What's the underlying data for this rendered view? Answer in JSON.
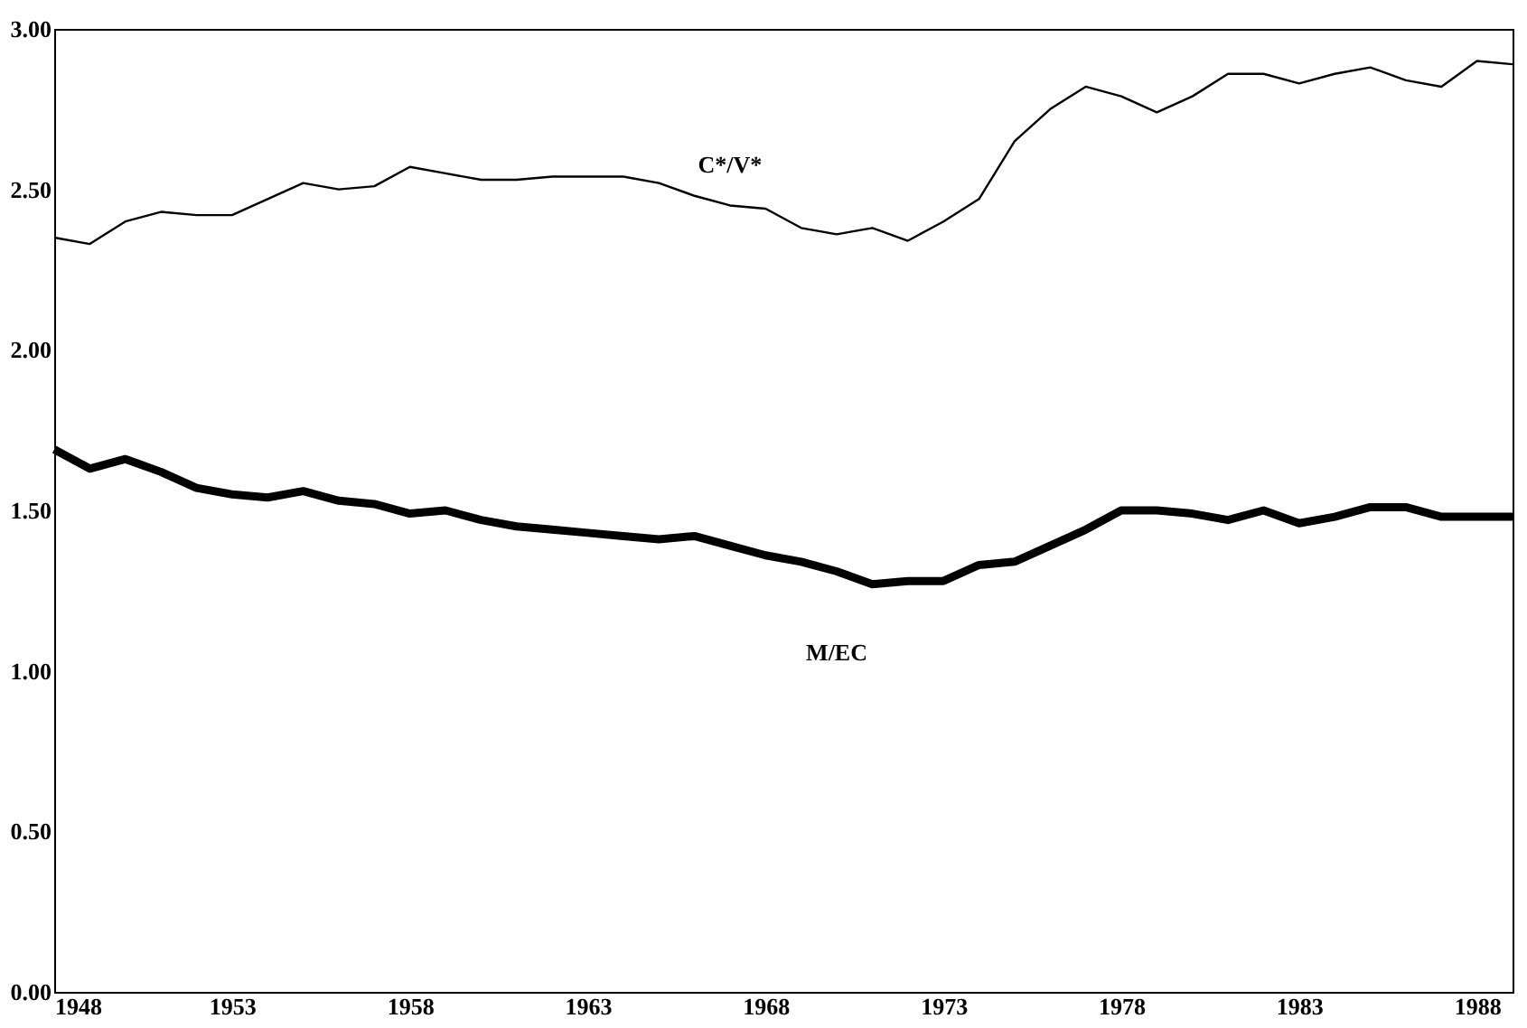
{
  "chart_data": {
    "type": "line",
    "x": [
      1948,
      1949,
      1950,
      1951,
      1952,
      1953,
      1954,
      1955,
      1956,
      1957,
      1958,
      1959,
      1960,
      1961,
      1962,
      1963,
      1964,
      1965,
      1966,
      1967,
      1968,
      1969,
      1970,
      1971,
      1972,
      1973,
      1974,
      1975,
      1976,
      1977,
      1978,
      1979,
      1980,
      1981,
      1982,
      1983,
      1984,
      1985,
      1986,
      1987,
      1988,
      1989
    ],
    "series": [
      {
        "name": "C*/V*",
        "color": "#000000",
        "values": [
          2.35,
          2.33,
          2.4,
          2.43,
          2.42,
          2.42,
          2.47,
          2.52,
          2.5,
          2.51,
          2.57,
          2.55,
          2.53,
          2.53,
          2.54,
          2.54,
          2.54,
          2.52,
          2.48,
          2.45,
          2.44,
          2.38,
          2.36,
          2.38,
          2.34,
          2.4,
          2.47,
          2.65,
          2.75,
          2.82,
          2.79,
          2.74,
          2.79,
          2.86,
          2.86,
          2.83,
          2.86,
          2.88,
          2.84,
          2.82,
          2.9,
          2.89
        ]
      },
      {
        "name": "M/EC",
        "color": "#000000",
        "values": [
          1.69,
          1.63,
          1.66,
          1.62,
          1.57,
          1.55,
          1.54,
          1.56,
          1.53,
          1.52,
          1.49,
          1.5,
          1.47,
          1.45,
          1.44,
          1.43,
          1.42,
          1.41,
          1.42,
          1.39,
          1.36,
          1.34,
          1.31,
          1.27,
          1.28,
          1.28,
          1.33,
          1.34,
          1.39,
          1.44,
          1.5,
          1.5,
          1.49,
          1.47,
          1.5,
          1.46,
          1.48,
          1.51,
          1.51,
          1.48,
          1.48,
          1.48
        ]
      }
    ],
    "xlim": [
      1948,
      1989
    ],
    "xticks": [
      1948,
      1953,
      1958,
      1963,
      1968,
      1973,
      1978,
      1983,
      1988
    ],
    "ylim": [
      0,
      3
    ],
    "yticks": [
      {
        "value": 0,
        "label": "0.00"
      },
      {
        "value": 0.5,
        "label": "0.50"
      },
      {
        "value": 1,
        "label": "1.00"
      },
      {
        "value": 1.5,
        "label": "1.50"
      },
      {
        "value": 2,
        "label": "2.00"
      },
      {
        "value": 2.5,
        "label": "2.50"
      },
      {
        "value": 3,
        "label": "3.00"
      }
    ],
    "grid": false,
    "marker": "none",
    "line_style": "solid"
  }
}
